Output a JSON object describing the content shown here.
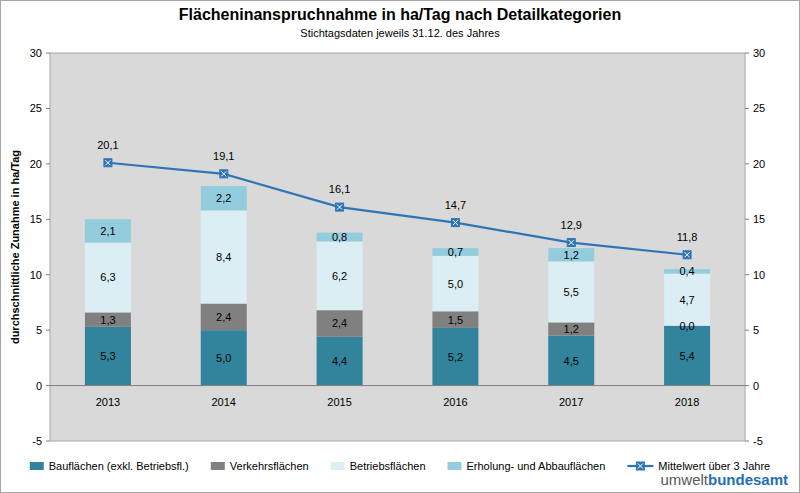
{
  "chart_data": {
    "type": "bar",
    "title": "Flächeninanspruchnahme in ha/Tag nach Detailkategorien",
    "subtitle": "Stichtagsdaten jeweils 31.12. des Jahres",
    "y_label": "durchschnittliche Zunahme in ha/Tag",
    "categories": [
      "2013",
      "2014",
      "2015",
      "2016",
      "2017",
      "2018"
    ],
    "stacked": true,
    "data_labels": true,
    "grid": false,
    "legend": "bottom",
    "ylim": [
      -5,
      30
    ],
    "yticks": [
      -5,
      0,
      5,
      10,
      15,
      20,
      25,
      30
    ],
    "y2lim": [
      -5,
      30
    ],
    "y2ticks": [
      -5,
      0,
      5,
      10,
      15,
      20,
      25,
      30
    ],
    "series": [
      {
        "name": "Bauflächen (exkl. Betriebsfl.)",
        "color": "#31849b",
        "type": "bar",
        "values": [
          5.3,
          5.0,
          4.4,
          5.2,
          4.5,
          5.4
        ],
        "value_labels": [
          "5,3",
          "5,0",
          "4,4",
          "5,2",
          "4,5",
          "5,4"
        ]
      },
      {
        "name": "Verkehrsflächen",
        "color": "#808080",
        "type": "bar",
        "values": [
          1.3,
          2.4,
          2.4,
          1.5,
          1.2,
          0.0
        ],
        "value_labels": [
          "1,3",
          "2,4",
          "2,4",
          "1,5",
          "1,2",
          "0,0"
        ]
      },
      {
        "name": "Betriebsflächen",
        "color": "#dbeef4",
        "type": "bar",
        "values": [
          6.3,
          8.4,
          6.2,
          5.0,
          5.5,
          4.7
        ],
        "value_labels": [
          "6,3",
          "8,4",
          "6,2",
          "5,0",
          "5,5",
          "4,7"
        ]
      },
      {
        "name": "Erholung- und Abbauflächen",
        "color": "#93cddd",
        "type": "bar",
        "values": [
          2.1,
          2.2,
          0.8,
          0.7,
          1.2,
          0.4
        ],
        "value_labels": [
          "2,1",
          "2,2",
          "0,8",
          "0,7",
          "1,2",
          "0,4"
        ]
      },
      {
        "name": "Mittelwert über 3 Jahre",
        "color": "#2e75b6",
        "type": "line",
        "axis": "y2",
        "marker": "square",
        "line_style": "solid",
        "values": [
          20.1,
          19.1,
          16.1,
          14.7,
          12.9,
          11.8
        ],
        "value_labels": [
          "20,1",
          "19,1",
          "16,1",
          "14,7",
          "12,9",
          "11,8"
        ]
      }
    ],
    "logo": [
      "umwelt",
      "bundesamt"
    ]
  }
}
